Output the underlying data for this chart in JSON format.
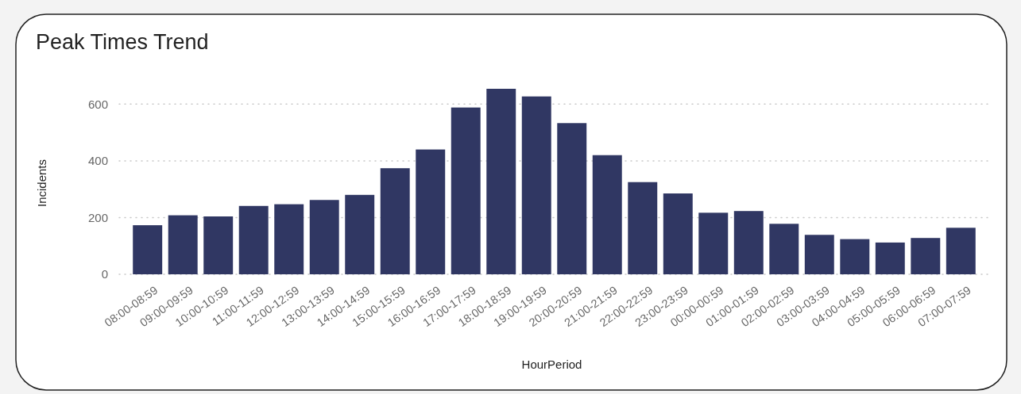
{
  "chart_data": {
    "type": "bar",
    "title": "Peak Times Trend",
    "xlabel": "HourPeriod",
    "ylabel": "Incidents",
    "categories": [
      "08:00-08:59",
      "09:00-09:59",
      "10:00-10:59",
      "11:00-11:59",
      "12:00-12:59",
      "13:00-13:59",
      "14:00-14:59",
      "15:00-15:59",
      "16:00-16:59",
      "17:00-17:59",
      "18:00-18:59",
      "19:00-19:59",
      "20:00-20:59",
      "21:00-21:59",
      "22:00-22:59",
      "23:00-23:59",
      "00:00-00:59",
      "01:00-01:59",
      "02:00-02:59",
      "03:00-03:59",
      "04:00-04:59",
      "05:00-05:59",
      "06:00-06:59",
      "07:00-07:59"
    ],
    "values": [
      173,
      208,
      204,
      241,
      247,
      262,
      280,
      374,
      440,
      588,
      654,
      627,
      533,
      420,
      325,
      285,
      217,
      223,
      178,
      139,
      124,
      112,
      128,
      164
    ],
    "color": "#303763",
    "ylim": [
      0,
      654
    ],
    "yticks": [
      0,
      200,
      400,
      600
    ],
    "grid": "y"
  }
}
